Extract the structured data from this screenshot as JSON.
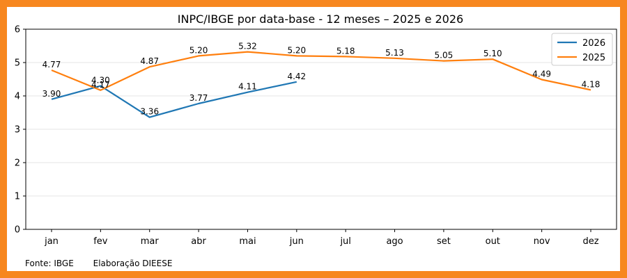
{
  "chart_data": {
    "type": "line",
    "title": "INPC/IBGE por data-base - 12 meses – 2025 e 2026",
    "xlabel": "",
    "ylabel": "",
    "categories": [
      "jan",
      "fev",
      "mar",
      "abr",
      "mai",
      "jun",
      "jul",
      "ago",
      "set",
      "out",
      "nov",
      "dez"
    ],
    "ylim": [
      0,
      6
    ],
    "yticks": [
      0,
      1,
      2,
      3,
      4,
      5,
      6
    ],
    "grid": true,
    "legend_position": "top-right",
    "series": [
      {
        "name": "2026",
        "color": "#1f77b4",
        "values": [
          3.9,
          4.3,
          3.36,
          3.77,
          4.11,
          4.42,
          null,
          null,
          null,
          null,
          null,
          null
        ],
        "labels": [
          "3.90",
          "4.30",
          "3.36",
          "3.77",
          "4.11",
          "4.42",
          null,
          null,
          null,
          null,
          null,
          null
        ]
      },
      {
        "name": "2025",
        "color": "#ff7f0e",
        "values": [
          4.77,
          4.17,
          4.87,
          5.2,
          5.32,
          5.2,
          5.18,
          5.13,
          5.05,
          5.1,
          4.49,
          4.18
        ],
        "labels": [
          "4.77",
          "4.17",
          "4.87",
          "5.20",
          "5.32",
          "5.20",
          "5.18",
          "5.13",
          "5.05",
          "5.10",
          "4.49",
          "4.18"
        ]
      }
    ]
  },
  "footer": {
    "source": "Fonte: IBGE",
    "credit": "Elaboração DIEESE"
  },
  "colors": {
    "frame": "#f7871f",
    "grid": "#e6e6e6"
  }
}
